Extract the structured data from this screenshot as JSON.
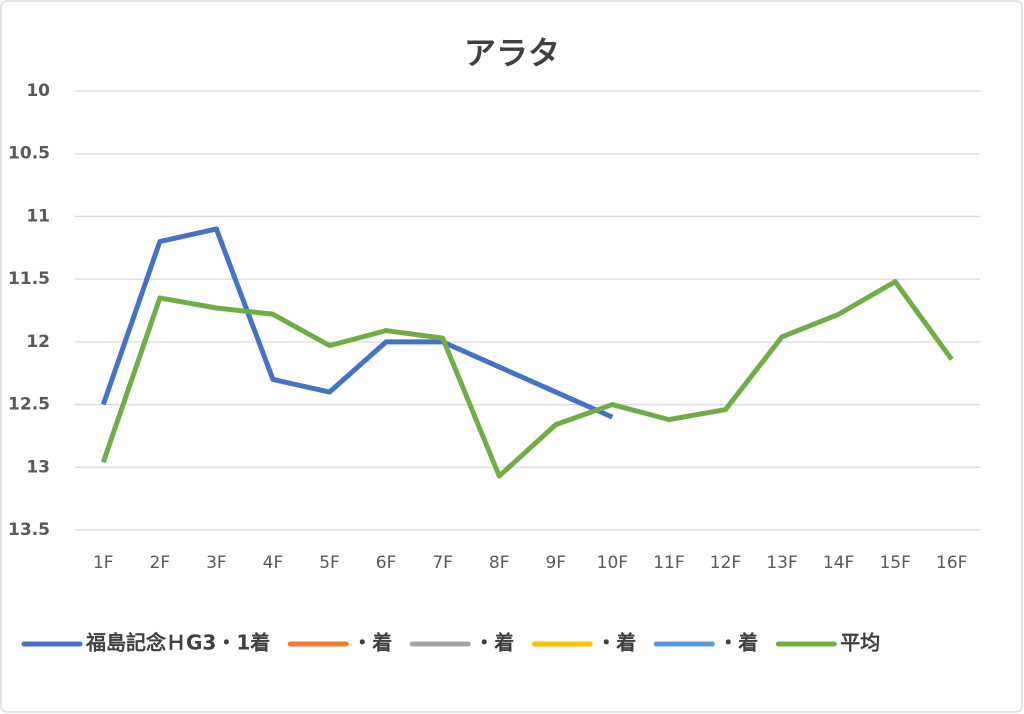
{
  "chart_data": {
    "type": "line",
    "title": "アラタ",
    "categories": [
      "1F",
      "2F",
      "3F",
      "4F",
      "5F",
      "6F",
      "7F",
      "8F",
      "9F",
      "10F",
      "11F",
      "12F",
      "13F",
      "14F",
      "15F",
      "16F"
    ],
    "series": [
      {
        "name": "福島記念ＨG3・1着",
        "color": "#4472c4",
        "values": [
          12.5,
          11.2,
          11.1,
          12.3,
          12.4,
          12.0,
          12.0,
          12.2,
          12.4,
          12.6,
          null,
          null,
          null,
          null,
          null,
          null
        ]
      },
      {
        "name": "・着",
        "color": "#ed7d31",
        "values": [
          null,
          null,
          null,
          null,
          null,
          null,
          null,
          null,
          null,
          null,
          null,
          null,
          null,
          null,
          null,
          null
        ]
      },
      {
        "name": "・着",
        "color": "#a5a5a5",
        "values": [
          null,
          null,
          null,
          null,
          null,
          null,
          null,
          null,
          null,
          null,
          null,
          null,
          null,
          null,
          null,
          null
        ]
      },
      {
        "name": "・着",
        "color": "#ffc000",
        "values": [
          null,
          null,
          null,
          null,
          null,
          null,
          null,
          null,
          null,
          null,
          null,
          null,
          null,
          null,
          null,
          null
        ]
      },
      {
        "name": "・着",
        "color": "#5b9bd5",
        "values": [
          null,
          null,
          null,
          null,
          null,
          null,
          null,
          null,
          null,
          null,
          null,
          null,
          null,
          null,
          null,
          null
        ]
      },
      {
        "name": "平均",
        "color": "#70ad47",
        "values": [
          12.96,
          11.65,
          11.73,
          11.78,
          12.03,
          11.91,
          11.97,
          13.07,
          12.66,
          12.5,
          12.62,
          12.54,
          11.96,
          11.78,
          11.52,
          12.14
        ]
      }
    ],
    "ylim": [
      10,
      13.5
    ],
    "y_inverted": true,
    "yticks": [
      10,
      10.5,
      11,
      11.5,
      12,
      12.5,
      13,
      13.5
    ],
    "grid": true,
    "legend": "bottom"
  }
}
